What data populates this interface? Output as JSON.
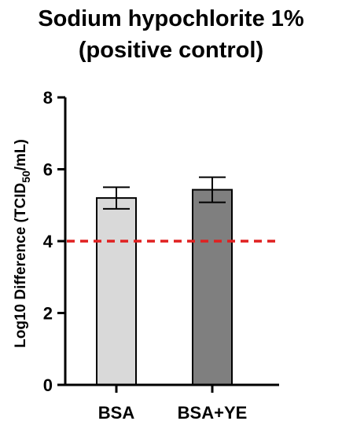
{
  "chart_data": {
    "type": "bar",
    "title_line1": "Sodium hypochlorite 1%",
    "title_line2": "(positive control)",
    "ylabel_main": "Log10 Difference (TCID",
    "ylabel_sub": "50",
    "ylabel_end": "/mL)",
    "ylim": [
      0,
      8
    ],
    "yticks": [
      "0",
      "2",
      "4",
      "6",
      "8"
    ],
    "categories": [
      "BSA",
      "BSA+YE"
    ],
    "values": [
      5.2,
      5.43
    ],
    "errors": [
      0.3,
      0.35
    ],
    "bar_colors": [
      "#d9d9d9",
      "#7f7f7f"
    ],
    "threshold": 4,
    "threshold_color": "#e02020",
    "grid": false
  }
}
